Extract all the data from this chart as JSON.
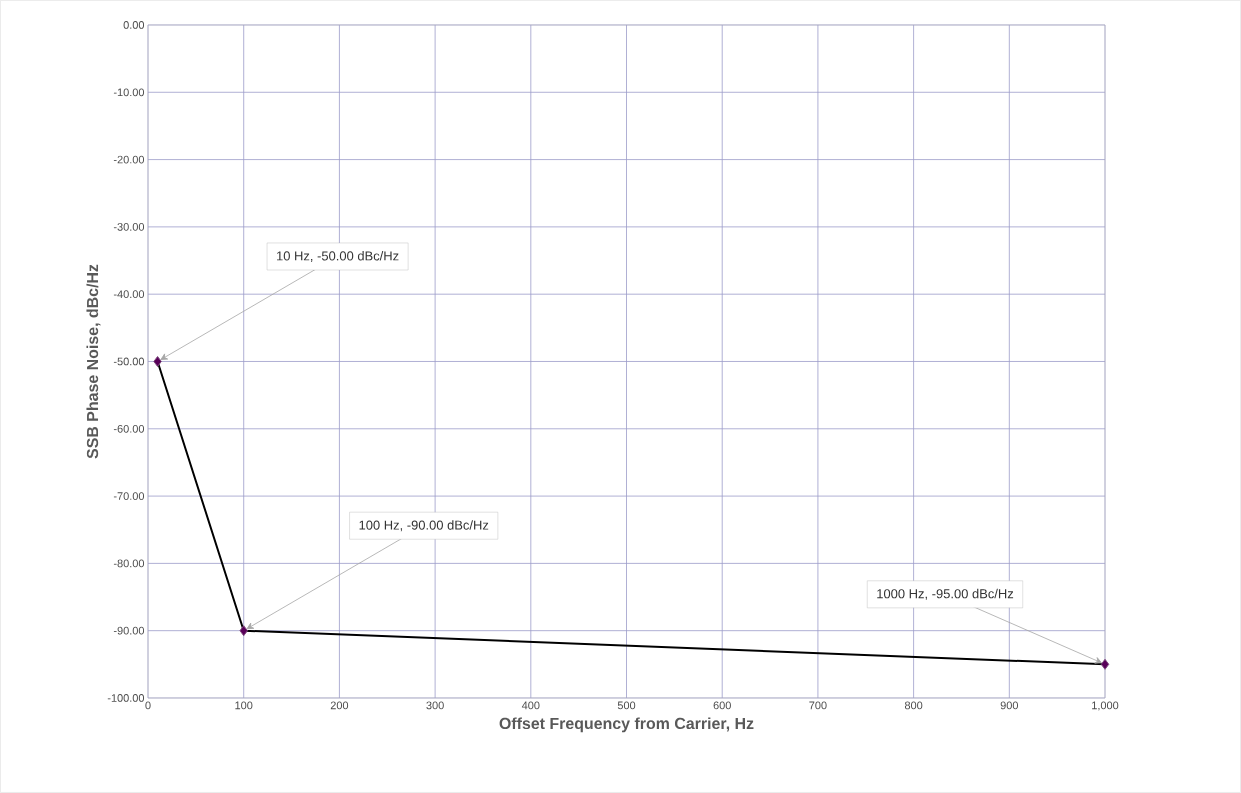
{
  "chart_data": {
    "type": "line",
    "xlabel": "Offset Frequency from Carrier, Hz",
    "ylabel": "SSB Phase Noise, dBc/Hz",
    "x": [
      10,
      100,
      1000
    ],
    "series": [
      {
        "color": "#000000",
        "values": [
          -50,
          -90,
          -95
        ]
      }
    ],
    "marker": "diamond",
    "grid": true,
    "xlim": [
      0,
      1000
    ],
    "ylim": [
      -100,
      0
    ],
    "xticks": [
      0,
      100,
      200,
      300,
      400,
      500,
      600,
      700,
      800,
      900,
      {
        "value": 1000,
        "label": "1,000"
      }
    ],
    "yticks": [
      {
        "value": 0,
        "label": "0.00"
      },
      {
        "value": -10,
        "label": "-10.00"
      },
      {
        "value": -20,
        "label": "-20.00"
      },
      {
        "value": -30,
        "label": "-30.00"
      },
      {
        "value": -40,
        "label": "-40.00"
      },
      {
        "value": -50,
        "label": "-50.00"
      },
      {
        "value": -60,
        "label": "-60.00"
      },
      {
        "value": -70,
        "label": "-70.00"
      },
      {
        "value": -80,
        "label": "-80.00"
      },
      {
        "value": -90,
        "label": "-90.00"
      },
      {
        "value": -100,
        "label": "-100.00"
      }
    ],
    "annotations": [
      {
        "text": "10 Hz, -50.00 dBc/Hz",
        "x": 10,
        "y": -50
      },
      {
        "text": "100 Hz, -90.00 dBc/Hz",
        "x": 100,
        "y": -90
      },
      {
        "text": "1000 Hz, -95.00 dBc/Hz",
        "x": 1000,
        "y": -95
      }
    ]
  }
}
